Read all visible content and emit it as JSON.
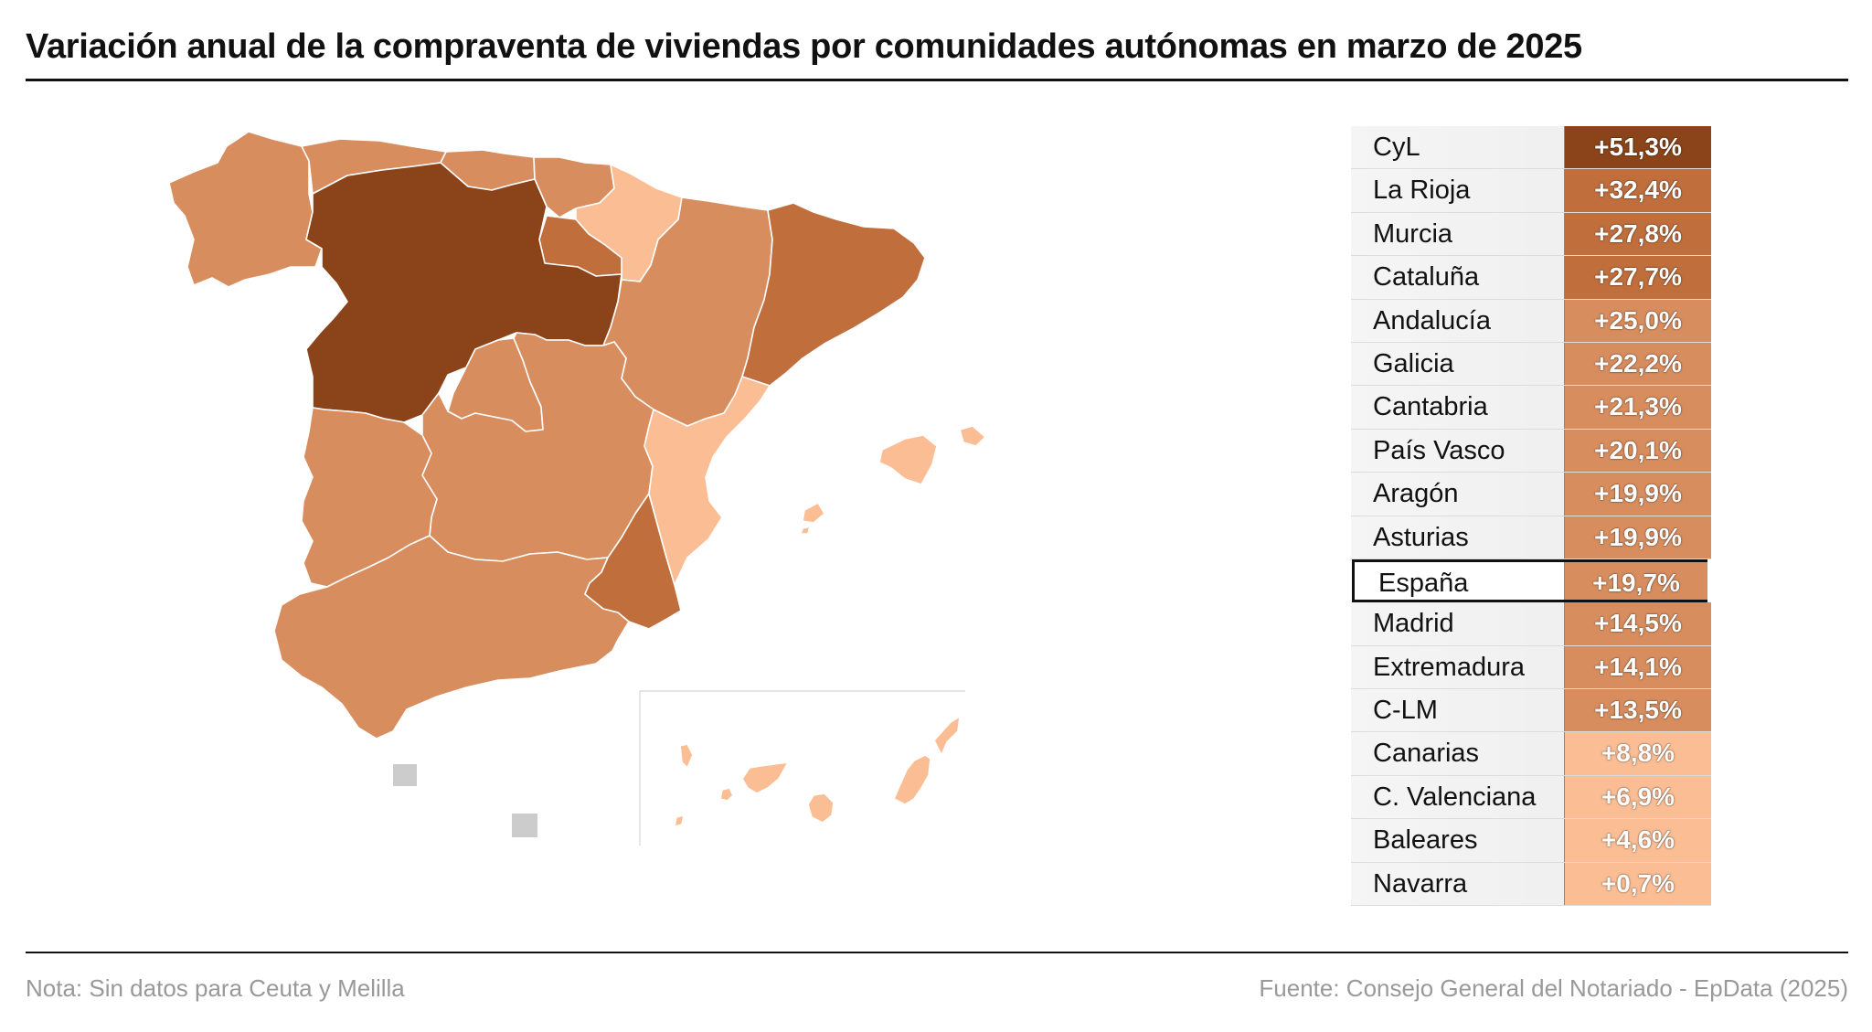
{
  "title": "Variación anual de la compraventa de viviendas por comunidades autónomas en marzo de 2025",
  "note": "Nota: Sin datos para Ceuta y Melilla",
  "source": "Fuente: Consejo General del Notariado - EpData (2025)",
  "colors": {
    "level_1": "#8b4419",
    "level_2": "#c06e3c",
    "level_3": "#d88d5e",
    "level_4": "#fbbd93",
    "no_data": "#cccccc",
    "border": "#ffffff"
  },
  "ranking": [
    {
      "region": "CyL",
      "value": "+51,3%",
      "level": "level_1"
    },
    {
      "region": "La Rioja",
      "value": "+32,4%",
      "level": "level_2"
    },
    {
      "region": "Murcia",
      "value": "+27,8%",
      "level": "level_2"
    },
    {
      "region": "Cataluña",
      "value": "+27,7%",
      "level": "level_2"
    },
    {
      "region": "Andalucía",
      "value": "+25,0%",
      "level": "level_3"
    },
    {
      "region": "Galicia",
      "value": "+22,2%",
      "level": "level_3"
    },
    {
      "region": "Cantabria",
      "value": "+21,3%",
      "level": "level_3"
    },
    {
      "region": "País Vasco",
      "value": "+20,1%",
      "level": "level_3"
    },
    {
      "region": "Aragón",
      "value": "+19,9%",
      "level": "level_3"
    },
    {
      "region": "Asturias",
      "value": "+19,9%",
      "level": "level_3"
    },
    {
      "region": "España",
      "value": "+19,7%",
      "level": "level_3",
      "highlight": true
    },
    {
      "region": "Madrid",
      "value": "+14,5%",
      "level": "level_3"
    },
    {
      "region": "Extremadura",
      "value": "+14,1%",
      "level": "level_3"
    },
    {
      "region": "C-LM",
      "value": "+13,5%",
      "level": "level_3"
    },
    {
      "region": "Canarias",
      "value": "+8,8%",
      "level": "level_4"
    },
    {
      "region": "C. Valenciana",
      "value": "+6,9%",
      "level": "level_4"
    },
    {
      "region": "Baleares",
      "value": "+4,6%",
      "level": "level_4"
    },
    {
      "region": "Navarra",
      "value": "+0,7%",
      "level": "level_4"
    }
  ]
}
